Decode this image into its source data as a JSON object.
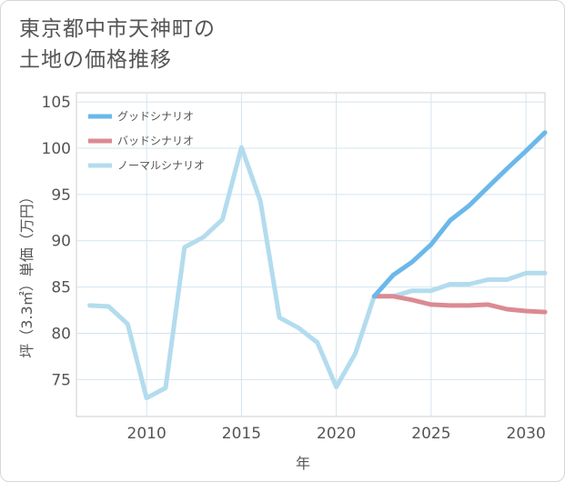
{
  "title_lines": [
    "東京都中市天神町の",
    "土地の価格推移"
  ],
  "chart_data": {
    "type": "line",
    "xlabel": "年",
    "ylabel": "坪（3.3㎡）単価（万円）",
    "xlim": [
      2006.3,
      2031
    ],
    "ylim": [
      71,
      106
    ],
    "xticks": [
      2010,
      2015,
      2020,
      2025,
      2030
    ],
    "yticks": [
      75,
      80,
      85,
      90,
      95,
      100,
      105
    ],
    "grid": true,
    "legend_position": "top-left",
    "series": [
      {
        "name": "グッドシナリオ",
        "color": "#6bb8ea",
        "x": [
          2022,
          2023,
          2024,
          2025,
          2026,
          2027,
          2028,
          2029,
          2030,
          2031
        ],
        "values": [
          84.0,
          86.3,
          87.7,
          89.6,
          92.2,
          93.8,
          95.8,
          97.8,
          99.7,
          101.7
        ]
      },
      {
        "name": "バッドシナリオ",
        "color": "#dc8a93",
        "x": [
          2022,
          2023,
          2024,
          2025,
          2026,
          2027,
          2028,
          2029,
          2030,
          2031
        ],
        "values": [
          84.0,
          84.0,
          83.6,
          83.1,
          83.0,
          83.0,
          83.1,
          82.6,
          82.4,
          82.3
        ]
      },
      {
        "name": "ノーマルシナリオ",
        "color": "#b3dcee",
        "x": [
          2007,
          2008,
          2009,
          2010,
          2011,
          2012,
          2013,
          2014,
          2015,
          2016,
          2017,
          2018,
          2019,
          2020,
          2021,
          2022,
          2023,
          2024,
          2025,
          2026,
          2027,
          2028,
          2029,
          2030,
          2031
        ],
        "values": [
          83.0,
          82.9,
          81.0,
          73.0,
          74.1,
          89.3,
          90.4,
          92.3,
          100.1,
          94.3,
          81.7,
          80.6,
          79.0,
          74.2,
          77.8,
          84.0,
          84.0,
          84.6,
          84.6,
          85.3,
          85.3,
          85.8,
          85.8,
          86.5,
          86.5
        ]
      }
    ]
  }
}
